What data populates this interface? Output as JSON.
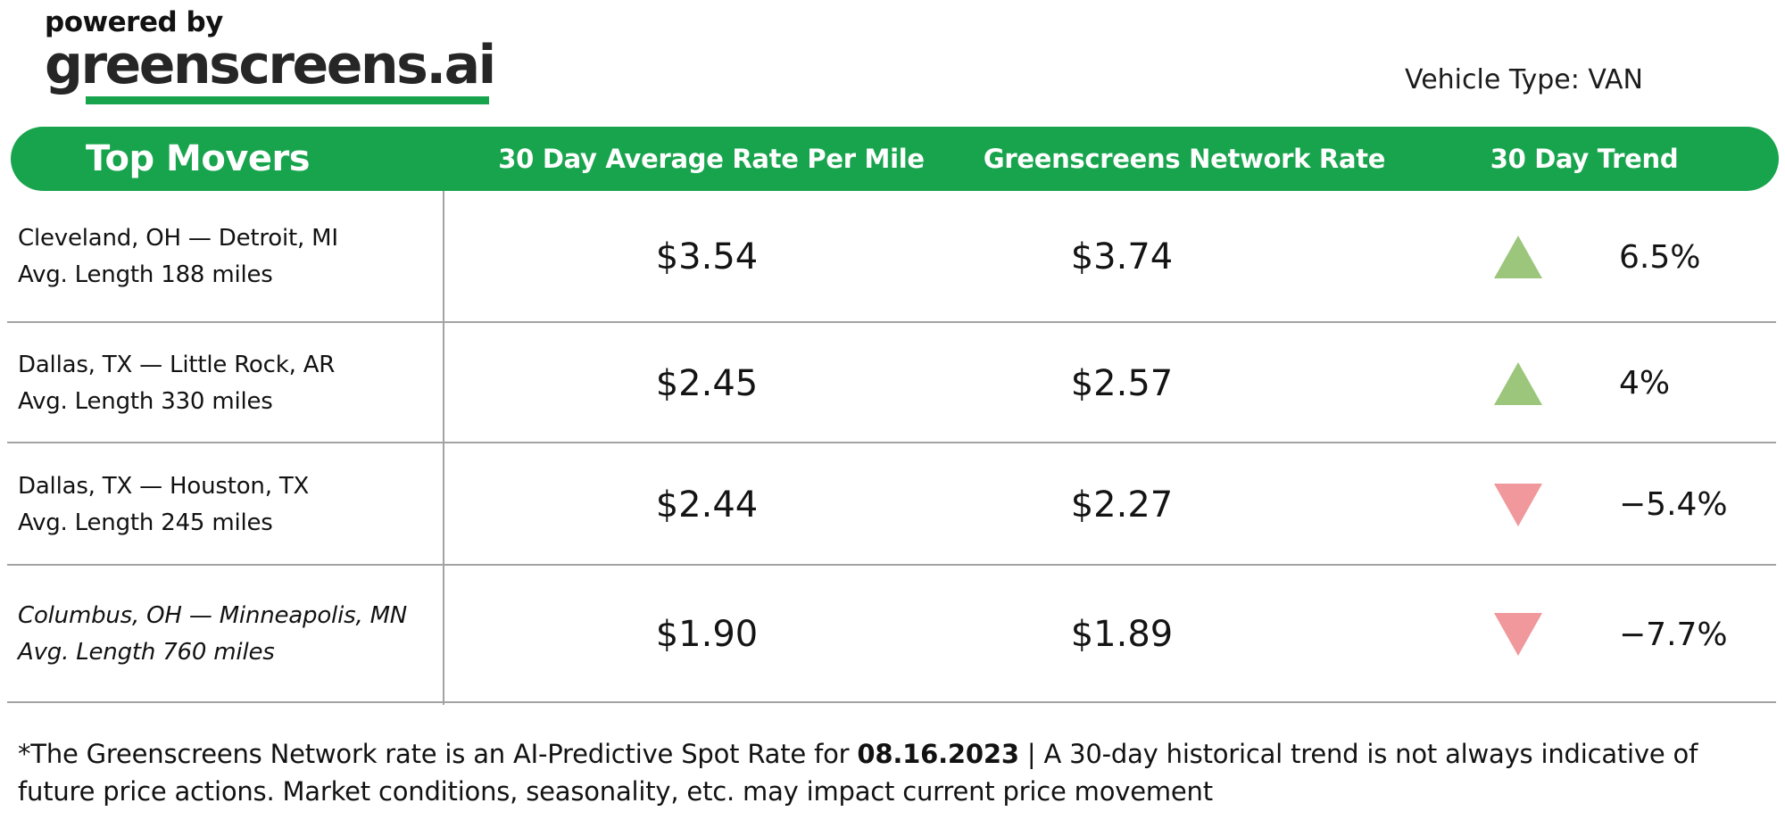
{
  "brand": {
    "powered_by": "powered by",
    "name": "greenscreens.ai"
  },
  "vehicle_type": "Vehicle Type: VAN",
  "table": {
    "columns": [
      "Top Movers",
      "30 Day Average Rate Per Mile",
      "Greenscreens Network Rate",
      "30 Day Trend"
    ],
    "rows": [
      {
        "lane": "Cleveland, OH — Detroit, MI",
        "length": "Avg. Length 188 miles",
        "avg_rate": "$3.54",
        "network_rate": "$3.74",
        "trend": "up",
        "trend_pct": "6.5%",
        "italic": false
      },
      {
        "lane": "Dallas, TX — Little Rock, AR",
        "length": "Avg. Length 330 miles",
        "avg_rate": "$2.45",
        "network_rate": "$2.57",
        "trend": "up",
        "trend_pct": "4%",
        "italic": false
      },
      {
        "lane": "Dallas, TX — Houston, TX",
        "length": "Avg. Length 245 miles",
        "avg_rate": "$2.44",
        "network_rate": "$2.27",
        "trend": "down",
        "trend_pct": "−5.4%",
        "italic": false
      },
      {
        "lane": "Columbus, OH — Minneapolis, MN",
        "length": "Avg. Length 760 miles",
        "avg_rate": "$1.90",
        "network_rate": "$1.89",
        "trend": "down",
        "trend_pct": "−7.7%",
        "italic": true
      }
    ]
  },
  "footnote": {
    "part1": "*The Greenscreens Network rate is an AI-Predictive Spot Rate for ",
    "date": "08.16.2023",
    "part2": " | A 30-day historical trend is not always indicative of future price actions. Market conditions, seasonality, etc. may impact current price movement"
  },
  "colors": {
    "brand-green": "#18A44D",
    "up-green": "#9CC67C",
    "down-red": "#F0989B",
    "line-gray": "#A3A3A3",
    "text-dark": "#161616"
  }
}
